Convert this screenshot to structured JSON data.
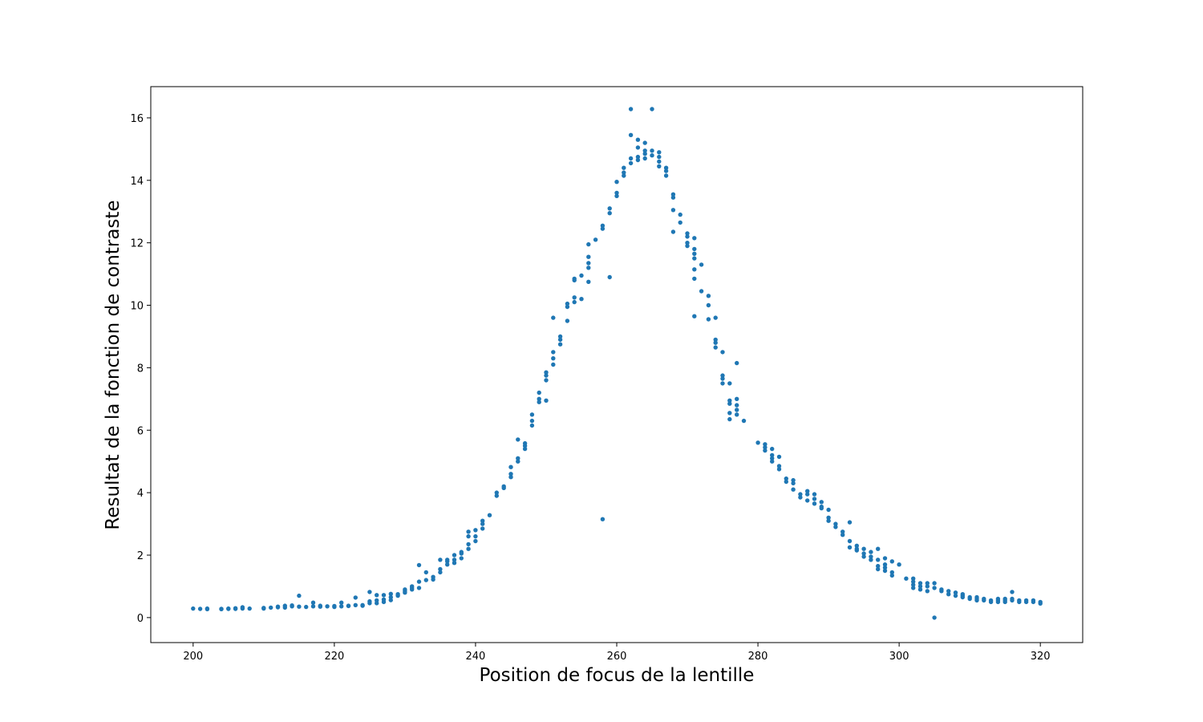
{
  "chart_data": {
    "type": "scatter",
    "title": "",
    "xlabel": "Position de focus de la lentille",
    "ylabel": "Resultat de la fonction de contraste",
    "xlim": [
      194,
      326
    ],
    "ylim": [
      -0.8,
      17.0
    ],
    "xticks": [
      200,
      220,
      240,
      260,
      280,
      300,
      320
    ],
    "yticks": [
      0,
      2,
      4,
      6,
      8,
      10,
      12,
      14,
      16
    ],
    "grid": false,
    "legend": "none",
    "marker_color": "#1f77b4",
    "series": [
      {
        "points": [
          [
            200,
            0.29
          ],
          [
            201,
            0.28
          ],
          [
            202,
            0.29
          ],
          [
            202,
            0.27
          ],
          [
            204,
            0.28
          ],
          [
            204,
            0.27
          ],
          [
            205,
            0.29
          ],
          [
            205,
            0.28
          ],
          [
            206,
            0.28
          ],
          [
            206,
            0.3
          ],
          [
            207,
            0.33
          ],
          [
            207,
            0.29
          ],
          [
            208,
            0.29
          ],
          [
            210,
            0.29
          ],
          [
            210,
            0.31
          ],
          [
            211,
            0.32
          ],
          [
            212,
            0.33
          ],
          [
            212,
            0.35
          ],
          [
            213,
            0.32
          ],
          [
            213,
            0.38
          ],
          [
            214,
            0.36
          ],
          [
            214,
            0.39
          ],
          [
            215,
            0.7
          ],
          [
            215,
            0.35
          ],
          [
            216,
            0.34
          ],
          [
            217,
            0.36
          ],
          [
            217,
            0.48
          ],
          [
            218,
            0.35
          ],
          [
            218,
            0.38
          ],
          [
            219,
            0.36
          ],
          [
            220,
            0.37
          ],
          [
            220,
            0.34
          ],
          [
            221,
            0.36
          ],
          [
            221,
            0.48
          ],
          [
            222,
            0.38
          ],
          [
            222,
            0.37
          ],
          [
            223,
            0.4
          ],
          [
            223,
            0.64
          ],
          [
            224,
            0.4
          ],
          [
            224,
            0.38
          ],
          [
            225,
            0.46
          ],
          [
            225,
            0.82
          ],
          [
            225,
            0.52
          ],
          [
            226,
            0.46
          ],
          [
            226,
            0.72
          ],
          [
            226,
            0.55
          ],
          [
            227,
            0.5
          ],
          [
            227,
            0.72
          ],
          [
            227,
            0.58
          ],
          [
            228,
            0.56
          ],
          [
            228,
            0.76
          ],
          [
            228,
            0.65
          ],
          [
            229,
            0.7
          ],
          [
            229,
            0.75
          ],
          [
            230,
            0.8
          ],
          [
            230,
            0.9
          ],
          [
            230,
            0.85
          ],
          [
            231,
            0.9
          ],
          [
            231,
            1.0
          ],
          [
            231,
            0.95
          ],
          [
            232,
            0.95
          ],
          [
            232,
            1.15
          ],
          [
            232,
            1.68
          ],
          [
            233,
            1.2
          ],
          [
            233,
            1.45
          ],
          [
            234,
            1.22
          ],
          [
            234,
            1.3
          ],
          [
            235,
            1.45
          ],
          [
            235,
            1.55
          ],
          [
            235,
            1.85
          ],
          [
            236,
            1.7
          ],
          [
            236,
            1.8
          ],
          [
            236,
            1.85
          ],
          [
            237,
            1.75
          ],
          [
            237,
            1.85
          ],
          [
            237,
            2.0
          ],
          [
            238,
            1.9
          ],
          [
            238,
            2.05
          ],
          [
            238,
            2.1
          ],
          [
            239,
            2.2
          ],
          [
            239,
            2.35
          ],
          [
            239,
            2.6
          ],
          [
            239,
            2.75
          ],
          [
            240,
            2.45
          ],
          [
            240,
            2.6
          ],
          [
            240,
            2.8
          ],
          [
            241,
            2.85
          ],
          [
            241,
            3.0
          ],
          [
            241,
            3.1
          ],
          [
            242,
            3.28
          ],
          [
            243,
            3.9
          ],
          [
            243,
            4.0
          ],
          [
            244,
            4.15
          ],
          [
            244,
            4.2
          ],
          [
            245,
            4.5
          ],
          [
            245,
            4.6
          ],
          [
            245,
            4.82
          ],
          [
            246,
            5.0
          ],
          [
            246,
            5.1
          ],
          [
            246,
            5.7
          ],
          [
            247,
            5.4
          ],
          [
            247,
            5.5
          ],
          [
            247,
            5.58
          ],
          [
            248,
            6.15
          ],
          [
            248,
            6.3
          ],
          [
            248,
            6.5
          ],
          [
            249,
            6.9
          ],
          [
            249,
            7.0
          ],
          [
            249,
            7.2
          ],
          [
            250,
            7.6
          ],
          [
            250,
            7.75
          ],
          [
            250,
            7.85
          ],
          [
            250,
            6.95
          ],
          [
            251,
            8.1
          ],
          [
            251,
            8.3
          ],
          [
            251,
            8.5
          ],
          [
            251,
            9.6
          ],
          [
            252,
            8.75
          ],
          [
            252,
            8.9
          ],
          [
            252,
            9.0
          ],
          [
            253,
            9.5
          ],
          [
            253,
            9.95
          ],
          [
            253,
            10.05
          ],
          [
            254,
            10.1
          ],
          [
            254,
            10.25
          ],
          [
            254,
            10.8
          ],
          [
            254,
            10.85
          ],
          [
            255,
            10.2
          ],
          [
            255,
            10.95
          ],
          [
            256,
            10.75
          ],
          [
            256,
            11.2
          ],
          [
            256,
            11.35
          ],
          [
            256,
            11.55
          ],
          [
            256,
            11.95
          ],
          [
            257,
            12.1
          ],
          [
            258,
            12.45
          ],
          [
            258,
            12.55
          ],
          [
            258,
            3.15
          ],
          [
            259,
            10.9
          ],
          [
            259,
            12.95
          ],
          [
            259,
            13.1
          ],
          [
            260,
            13.5
          ],
          [
            260,
            13.6
          ],
          [
            260,
            13.95
          ],
          [
            261,
            14.15
          ],
          [
            261,
            14.25
          ],
          [
            261,
            14.4
          ],
          [
            262,
            14.55
          ],
          [
            262,
            14.7
          ],
          [
            262,
            15.45
          ],
          [
            262,
            16.28
          ],
          [
            263,
            14.65
          ],
          [
            263,
            14.75
          ],
          [
            263,
            15.05
          ],
          [
            263,
            15.3
          ],
          [
            264,
            14.7
          ],
          [
            264,
            14.85
          ],
          [
            264,
            14.95
          ],
          [
            264,
            15.2
          ],
          [
            265,
            14.8
          ],
          [
            265,
            14.95
          ],
          [
            265,
            16.28
          ],
          [
            266,
            14.45
          ],
          [
            266,
            14.6
          ],
          [
            266,
            14.75
          ],
          [
            266,
            14.9
          ],
          [
            267,
            14.15
          ],
          [
            267,
            14.3
          ],
          [
            267,
            14.4
          ],
          [
            268,
            12.35
          ],
          [
            268,
            13.05
          ],
          [
            268,
            13.45
          ],
          [
            268,
            13.55
          ],
          [
            269,
            12.65
          ],
          [
            269,
            12.9
          ],
          [
            270,
            11.9
          ],
          [
            270,
            12.0
          ],
          [
            270,
            12.2
          ],
          [
            270,
            12.3
          ],
          [
            271,
            9.65
          ],
          [
            271,
            10.85
          ],
          [
            271,
            11.15
          ],
          [
            271,
            11.5
          ],
          [
            271,
            11.65
          ],
          [
            271,
            11.8
          ],
          [
            271,
            12.15
          ],
          [
            272,
            11.3
          ],
          [
            272,
            10.45
          ],
          [
            273,
            9.55
          ],
          [
            273,
            10.0
          ],
          [
            273,
            10.3
          ],
          [
            274,
            8.65
          ],
          [
            274,
            8.8
          ],
          [
            274,
            8.9
          ],
          [
            274,
            9.6
          ],
          [
            275,
            7.5
          ],
          [
            275,
            7.65
          ],
          [
            275,
            7.75
          ],
          [
            275,
            8.5
          ],
          [
            276,
            6.35
          ],
          [
            276,
            6.55
          ],
          [
            276,
            6.85
          ],
          [
            276,
            6.95
          ],
          [
            276,
            7.5
          ],
          [
            277,
            6.5
          ],
          [
            277,
            6.65
          ],
          [
            277,
            6.8
          ],
          [
            277,
            7.0
          ],
          [
            277,
            8.15
          ],
          [
            278,
            6.3
          ],
          [
            280,
            5.6
          ],
          [
            281,
            5.35
          ],
          [
            281,
            5.45
          ],
          [
            281,
            5.55
          ],
          [
            282,
            5.0
          ],
          [
            282,
            5.1
          ],
          [
            282,
            5.2
          ],
          [
            282,
            5.4
          ],
          [
            283,
            4.75
          ],
          [
            283,
            4.85
          ],
          [
            283,
            5.15
          ],
          [
            284,
            4.35
          ],
          [
            284,
            4.45
          ],
          [
            285,
            4.1
          ],
          [
            285,
            4.3
          ],
          [
            285,
            4.4
          ],
          [
            286,
            3.85
          ],
          [
            286,
            3.95
          ],
          [
            287,
            3.75
          ],
          [
            287,
            3.95
          ],
          [
            287,
            4.05
          ],
          [
            288,
            3.65
          ],
          [
            288,
            3.8
          ],
          [
            288,
            3.95
          ],
          [
            289,
            3.5
          ],
          [
            289,
            3.55
          ],
          [
            289,
            3.7
          ],
          [
            290,
            3.1
          ],
          [
            290,
            3.2
          ],
          [
            290,
            3.45
          ],
          [
            291,
            2.9
          ],
          [
            291,
            3.0
          ],
          [
            292,
            2.65
          ],
          [
            292,
            2.75
          ],
          [
            293,
            2.25
          ],
          [
            293,
            2.45
          ],
          [
            293,
            3.05
          ],
          [
            294,
            2.15
          ],
          [
            294,
            2.2
          ],
          [
            294,
            2.3
          ],
          [
            295,
            1.95
          ],
          [
            295,
            2.05
          ],
          [
            295,
            2.2
          ],
          [
            296,
            1.85
          ],
          [
            296,
            1.95
          ],
          [
            296,
            2.1
          ],
          [
            297,
            1.55
          ],
          [
            297,
            1.65
          ],
          [
            297,
            1.85
          ],
          [
            297,
            2.2
          ],
          [
            298,
            1.5
          ],
          [
            298,
            1.6
          ],
          [
            298,
            1.7
          ],
          [
            298,
            1.9
          ],
          [
            299,
            1.35
          ],
          [
            299,
            1.45
          ],
          [
            299,
            1.8
          ],
          [
            300,
            1.7
          ],
          [
            301,
            1.25
          ],
          [
            302,
            0.95
          ],
          [
            302,
            1.05
          ],
          [
            302,
            1.15
          ],
          [
            302,
            1.25
          ],
          [
            303,
            0.9
          ],
          [
            303,
            1.0
          ],
          [
            303,
            1.1
          ],
          [
            304,
            0.85
          ],
          [
            304,
            1.0
          ],
          [
            304,
            1.1
          ],
          [
            305,
            0.0
          ],
          [
            305,
            0.95
          ],
          [
            305,
            1.1
          ],
          [
            306,
            0.85
          ],
          [
            306,
            0.9
          ],
          [
            307,
            0.75
          ],
          [
            307,
            0.85
          ],
          [
            308,
            0.7
          ],
          [
            308,
            0.8
          ],
          [
            309,
            0.65
          ],
          [
            309,
            0.7
          ],
          [
            309,
            0.75
          ],
          [
            310,
            0.6
          ],
          [
            310,
            0.65
          ],
          [
            311,
            0.55
          ],
          [
            311,
            0.6
          ],
          [
            311,
            0.65
          ],
          [
            312,
            0.55
          ],
          [
            312,
            0.6
          ],
          [
            313,
            0.5
          ],
          [
            313,
            0.55
          ],
          [
            314,
            0.5
          ],
          [
            314,
            0.55
          ],
          [
            314,
            0.6
          ],
          [
            315,
            0.5
          ],
          [
            315,
            0.55
          ],
          [
            315,
            0.6
          ],
          [
            316,
            0.55
          ],
          [
            316,
            0.6
          ],
          [
            316,
            0.82
          ],
          [
            317,
            0.5
          ],
          [
            317,
            0.55
          ],
          [
            318,
            0.5
          ],
          [
            318,
            0.55
          ],
          [
            319,
            0.5
          ],
          [
            319,
            0.55
          ],
          [
            320,
            0.45
          ],
          [
            320,
            0.5
          ]
        ]
      }
    ]
  }
}
